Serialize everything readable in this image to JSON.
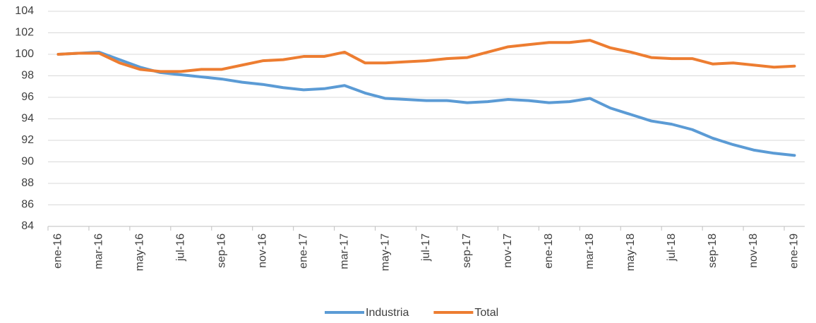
{
  "chart_data": {
    "type": "line",
    "categories": [
      "ene-16",
      null,
      "mar-16",
      null,
      "may-16",
      null,
      "jul-16",
      null,
      "sep-16",
      null,
      "nov-16",
      null,
      "ene-17",
      null,
      "mar-17",
      null,
      "may-17",
      null,
      "jul-17",
      null,
      "sep-17",
      null,
      "nov-17",
      null,
      "ene-18",
      null,
      "mar-18",
      null,
      "may-18",
      null,
      "jul-18",
      null,
      "sep-18",
      null,
      "nov-18",
      null,
      "ene-19"
    ],
    "series": [
      {
        "name": "Industria",
        "color": "#5b9bd5",
        "values": [
          100,
          100.1,
          100.2,
          99.5,
          98.8,
          98.3,
          98.1,
          97.9,
          97.7,
          97.4,
          97.2,
          96.9,
          96.7,
          96.8,
          97.1,
          96.4,
          95.9,
          95.8,
          95.7,
          95.7,
          95.5,
          95.6,
          95.8,
          95.7,
          95.5,
          95.6,
          95.9,
          95.0,
          94.4,
          93.8,
          93.5,
          93.0,
          92.2,
          91.6,
          91.1,
          90.8,
          90.6
        ]
      },
      {
        "name": "Total",
        "color": "#ed7d31",
        "values": [
          100,
          100.1,
          100.1,
          99.2,
          98.6,
          98.4,
          98.4,
          98.6,
          98.6,
          99.0,
          99.4,
          99.5,
          99.8,
          99.8,
          100.2,
          99.2,
          99.2,
          99.3,
          99.4,
          99.6,
          99.7,
          100.2,
          100.7,
          100.9,
          101.1,
          101.1,
          101.3,
          100.6,
          100.2,
          99.7,
          99.6,
          99.6,
          99.1,
          99.2,
          99.0,
          98.8,
          98.9
        ]
      }
    ],
    "ylim": [
      84,
      104
    ],
    "yticks": [
      84,
      86,
      88,
      90,
      92,
      94,
      96,
      98,
      100,
      102,
      104
    ],
    "grid": true,
    "legend": "bottom"
  }
}
